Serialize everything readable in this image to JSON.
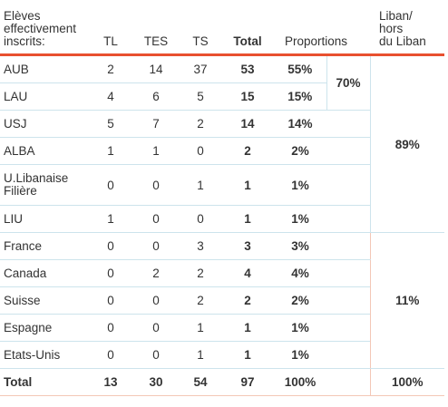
{
  "header": {
    "students": [
      "Elèves",
      "effectivement",
      "inscrits:"
    ],
    "tl": "TL",
    "tes": "TES",
    "ts": "TS",
    "total": "Total",
    "proportions": "Proportions",
    "liban": [
      "Liban/",
      "hors",
      "du Liban"
    ]
  },
  "rows": [
    {
      "name": [
        "AUB"
      ],
      "tl": "2",
      "tes": "14",
      "ts": "37",
      "total": "53",
      "prop": "55%"
    },
    {
      "name": [
        "LAU"
      ],
      "tl": "4",
      "tes": "6",
      "ts": "5",
      "total": "15",
      "prop": "15%"
    },
    {
      "name": [
        "USJ"
      ],
      "tl": "5",
      "tes": "7",
      "ts": "2",
      "total": "14",
      "prop": "14%"
    },
    {
      "name": [
        "ALBA"
      ],
      "tl": "1",
      "tes": "1",
      "ts": "0",
      "total": "2",
      "prop": "2%"
    },
    {
      "name": [
        "U.Libanaise",
        "Filière"
      ],
      "tl": "0",
      "tes": "0",
      "ts": "1",
      "total": "1",
      "prop": "1%"
    },
    {
      "name": [
        "LIU"
      ],
      "tl": "1",
      "tes": "0",
      "ts": "0",
      "total": "1",
      "prop": "1%"
    },
    {
      "name": [
        "France"
      ],
      "tl": "0",
      "tes": "0",
      "ts": "3",
      "total": "3",
      "prop": "3%"
    },
    {
      "name": [
        "Canada"
      ],
      "tl": "0",
      "tes": "2",
      "ts": "2",
      "total": "4",
      "prop": "4%"
    },
    {
      "name": [
        "Suisse"
      ],
      "tl": "0",
      "tes": "0",
      "ts": "2",
      "total": "2",
      "prop": "2%"
    },
    {
      "name": [
        "Espagne"
      ],
      "tl": "0",
      "tes": "0",
      "ts": "1",
      "total": "1",
      "prop": "1%"
    },
    {
      "name": [
        "Etats-Unis"
      ],
      "tl": "0",
      "tes": "0",
      "ts": "1",
      "total": "1",
      "prop": "1%"
    }
  ],
  "subtotal_aub_lau": "70%",
  "group_liban": "89%",
  "group_abroad": "11%",
  "total_row": {
    "label": "Total",
    "tl": "13",
    "tes": "30",
    "ts": "54",
    "total": "97",
    "prop": "100%",
    "group": "100%"
  }
}
